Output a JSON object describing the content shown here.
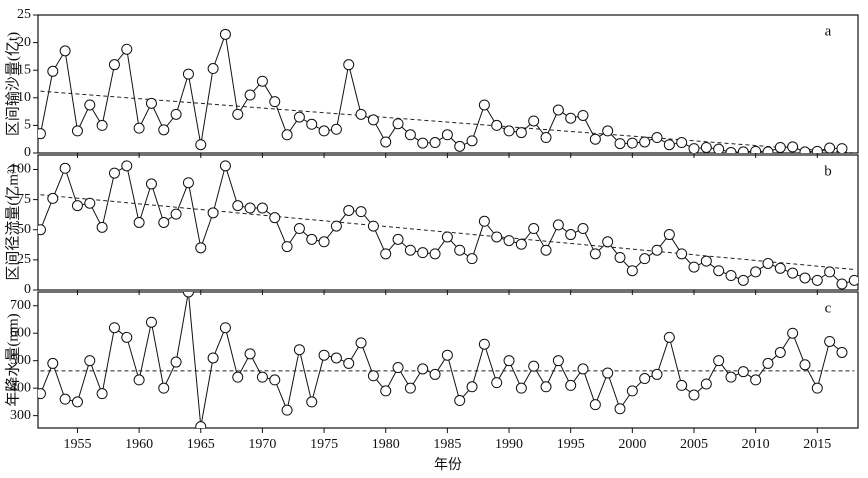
{
  "chart_data": [
    {
      "type": "line",
      "panel_label": "a",
      "ylabel": "区间输沙量(亿t)",
      "x": [
        1952,
        1953,
        1954,
        1955,
        1956,
        1957,
        1958,
        1959,
        1960,
        1961,
        1962,
        1963,
        1964,
        1965,
        1966,
        1967,
        1968,
        1969,
        1970,
        1971,
        1972,
        1973,
        1974,
        1975,
        1976,
        1977,
        1978,
        1979,
        1980,
        1981,
        1982,
        1983,
        1984,
        1985,
        1986,
        1987,
        1988,
        1989,
        1990,
        1991,
        1992,
        1993,
        1994,
        1995,
        1996,
        1997,
        1998,
        1999,
        2000,
        2001,
        2002,
        2003,
        2004,
        2005,
        2006,
        2007,
        2008,
        2009,
        2010,
        2011,
        2012,
        2013,
        2014,
        2015,
        2016,
        2017,
        2018
      ],
      "values": [
        3.5,
        14.8,
        18.5,
        4,
        8.7,
        5,
        16,
        18.8,
        4.5,
        9,
        4.2,
        7,
        14.3,
        1.5,
        15.3,
        21.5,
        7,
        10.5,
        13,
        9.3,
        3.3,
        6.5,
        5.2,
        4,
        4.3,
        16,
        7,
        6,
        2,
        5.3,
        3.3,
        1.8,
        1.9,
        3.3,
        1.2,
        2.2,
        8.7,
        5,
        4,
        3.7,
        5.8,
        2.8,
        7.8,
        6.3,
        6.8,
        2.5,
        4,
        1.7,
        1.8,
        2,
        2.8,
        1.5,
        1.9,
        0.8,
        1,
        0.7,
        0.1,
        0.2,
        0.3,
        0.2,
        1,
        1.1,
        0.2,
        0.3,
        0.9,
        0.8,
        null
      ],
      "trend": {
        "x": [
          1952,
          2018
        ],
        "values": [
          11.2,
          0
        ]
      },
      "ylim": [
        0,
        25
      ],
      "yticks": [
        0,
        5,
        10,
        15,
        20,
        25
      ]
    },
    {
      "type": "line",
      "panel_label": "b",
      "ylabel": "区间径流量(亿m³)",
      "x": [
        1952,
        1953,
        1954,
        1955,
        1956,
        1957,
        1958,
        1959,
        1960,
        1961,
        1962,
        1963,
        1964,
        1965,
        1966,
        1967,
        1968,
        1969,
        1970,
        1971,
        1972,
        1973,
        1974,
        1975,
        1976,
        1977,
        1978,
        1979,
        1980,
        1981,
        1982,
        1983,
        1984,
        1985,
        1986,
        1987,
        1988,
        1989,
        1990,
        1991,
        1992,
        1993,
        1994,
        1995,
        1996,
        1997,
        1998,
        1999,
        2000,
        2001,
        2002,
        2003,
        2004,
        2005,
        2006,
        2007,
        2008,
        2009,
        2010,
        2011,
        2012,
        2013,
        2014,
        2015,
        2016,
        2017,
        2018
      ],
      "values": [
        50,
        76,
        101,
        70,
        72,
        52,
        97,
        103,
        56,
        88,
        56,
        63,
        89,
        35,
        64,
        103,
        70,
        68,
        68,
        60,
        36,
        51,
        42,
        40,
        53,
        66,
        65,
        53,
        30,
        42,
        33,
        31,
        30,
        44,
        33,
        26,
        57,
        44,
        41,
        38,
        51,
        33,
        54,
        46,
        51,
        30,
        40,
        27,
        16,
        26,
        33,
        46,
        30,
        19,
        24,
        16,
        12,
        8,
        15,
        22,
        18,
        14,
        10,
        8,
        15,
        5,
        8
      ],
      "trend": {
        "x": [
          1952,
          2018
        ],
        "values": [
          79,
          17
        ]
      },
      "ylim": [
        0,
        112
      ],
      "yticks": [
        0,
        25,
        50,
        75,
        100
      ]
    },
    {
      "type": "line",
      "panel_label": "c",
      "ylabel": "年降水量(mm)",
      "xlabel": "年份",
      "x": [
        1952,
        1953,
        1954,
        1955,
        1956,
        1957,
        1958,
        1959,
        1960,
        1961,
        1962,
        1963,
        1964,
        1965,
        1966,
        1967,
        1968,
        1969,
        1970,
        1971,
        1972,
        1973,
        1974,
        1975,
        1976,
        1977,
        1978,
        1979,
        1980,
        1981,
        1982,
        1983,
        1984,
        1985,
        1986,
        1987,
        1988,
        1989,
        1990,
        1991,
        1992,
        1993,
        1994,
        1995,
        1996,
        1997,
        1998,
        1999,
        2000,
        2001,
        2002,
        2003,
        2004,
        2005,
        2006,
        2007,
        2008,
        2009,
        2010,
        2011,
        2012,
        2013,
        2014,
        2015,
        2016,
        2017,
        2018
      ],
      "values": [
        380,
        490,
        360,
        350,
        500,
        380,
        620,
        585,
        430,
        640,
        400,
        495,
        750,
        260,
        510,
        620,
        440,
        525,
        440,
        430,
        320,
        540,
        350,
        520,
        510,
        490,
        565,
        445,
        390,
        475,
        400,
        470,
        450,
        520,
        355,
        405,
        560,
        420,
        500,
        400,
        480,
        405,
        500,
        410,
        470,
        340,
        455,
        325,
        390,
        435,
        450,
        585,
        410,
        375,
        415,
        500,
        440,
        460,
        430,
        490,
        530,
        600,
        485,
        400,
        570,
        530,
        null
      ],
      "trend": {
        "x": [
          1952,
          2018
        ],
        "values": [
          463,
          463
        ]
      },
      "ylim": [
        255,
        750
      ],
      "yticks": [
        300,
        400,
        500,
        600,
        700
      ],
      "xlim": [
        1951.8,
        2018.3
      ],
      "xticks": [
        1955,
        1960,
        1965,
        1970,
        1975,
        1980,
        1985,
        1990,
        1995,
        2000,
        2005,
        2010,
        2015
      ]
    }
  ]
}
